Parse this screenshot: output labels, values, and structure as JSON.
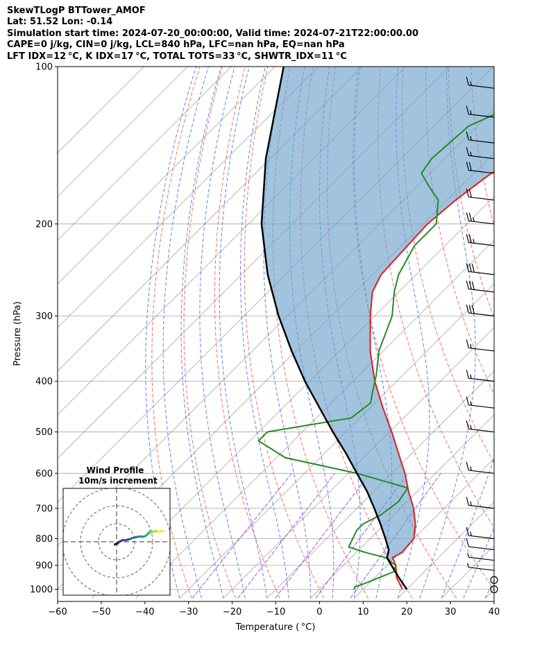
{
  "header": {
    "line1": "SkewTLogP BTTower_AMOF",
    "line2": "Lat: 51.52   Lon: -0.14",
    "line3": "Simulation start time: 2024-07-20_00:00:00, Valid time: 2024-07-21T22:00:00.00",
    "line4": "CAPE=0 j/kg, CIN=0 j/kg, LCL=840 hPa, LFC=nan hPa, EQ=nan hPa",
    "line5": "LFT IDX=12 °C, K IDX=17 °C, TOTAL TOTS=33 °C, SHWTR_IDX=11 °C"
  },
  "colors": {
    "temperature": "#e31a1c",
    "dewpoint": "#228b22",
    "parcel": "#000000",
    "cape_fill": "#6fa3cc",
    "dry_adiabats": "#ff4040",
    "moist_adiabats": "#3050ff",
    "mixing_ratio": "#8a2be2",
    "isotherms": "#808080"
  },
  "chart_data": [
    {
      "type": "line",
      "subtype": "skew-T log-P diagram",
      "xlabel": "Temperature ( °C)",
      "ylabel": "Pressure (hPa)",
      "xlim": [
        -60,
        40
      ],
      "ylim": [
        1040,
        100
      ],
      "y_scale": "log",
      "grid": true,
      "x_ticks": [
        "−60",
        "−50",
        "−40",
        "−30",
        "−20",
        "−10",
        "0",
        "10",
        "20",
        "30",
        "40"
      ],
      "y_ticks": [
        "100",
        "200",
        "300",
        "400",
        "500",
        "600",
        "700",
        "800",
        "900",
        "1000"
      ],
      "series": [
        {
          "key": "temperature",
          "p": [
            1000,
            950,
            900,
            870,
            850,
            800,
            750,
            700,
            650,
            600,
            550,
            500,
            450,
            400,
            350,
            300,
            270,
            250,
            200,
            180,
            160,
            150,
            140,
            130,
            120,
            110,
            100
          ],
          "t": [
            19.0,
            15.0,
            12.0,
            9.5,
            10.5,
            10.0,
            7.0,
            3.0,
            -2.0,
            -7.0,
            -13.0,
            -19.5,
            -27.0,
            -35.0,
            -43.0,
            -51.0,
            -56.0,
            -58.0,
            -59.0,
            -58.0,
            -56.0,
            -53.0,
            -50.0,
            -48.0,
            -47.5,
            -45.0,
            -44.0
          ]
        },
        {
          "key": "dewpoint",
          "p": [
            1000,
            990,
            975,
            950,
            925,
            900,
            870,
            850,
            830,
            800,
            770,
            750,
            720,
            680,
            640,
            600,
            560,
            520,
            500,
            470,
            440,
            420,
            390,
            350,
            300,
            270,
            250,
            220,
            200,
            180,
            170,
            160,
            150,
            130,
            120,
            100
          ],
          "t": [
            8.0,
            7.5,
            9.0,
            11.0,
            13.0,
            12.0,
            8.0,
            2.0,
            -3.0,
            -4.0,
            -5.0,
            -5.0,
            -3.0,
            -2.0,
            -3.0,
            -18.0,
            -38.0,
            -48.0,
            -48.0,
            -32.0,
            -31.0,
            -33.0,
            -36.0,
            -41.0,
            -46.0,
            -51.0,
            -54.0,
            -57.0,
            -57.0,
            -62.0,
            -67.0,
            -72.0,
            -73.0,
            -72.0,
            -67.0,
            -60.0
          ]
        },
        {
          "key": "parcel",
          "p": [
            1000,
            950,
            900,
            870,
            850,
            840,
            800,
            750,
            700,
            650,
            600,
            550,
            500,
            450,
            400,
            350,
            300,
            250,
            200,
            150,
            100
          ],
          "t": [
            20.0,
            15.5,
            11.0,
            8.2,
            7.3,
            6.8,
            3.5,
            -1.0,
            -6.0,
            -11.5,
            -18.0,
            -25.0,
            -33.0,
            -41.5,
            -51.0,
            -61.0,
            -72.0,
            -84.0,
            -97.0,
            -111.0,
            -128.0
          ]
        }
      ],
      "wind_barbs": {
        "p": [
          1000,
          960,
          920,
          880,
          840,
          800,
          700,
          600,
          500,
          450,
          400,
          350,
          300,
          270,
          250,
          220,
          200,
          180,
          160,
          150,
          140,
          125,
          110
        ],
        "speed_kt": [
          0,
          0,
          5,
          5,
          10,
          15,
          15,
          15,
          15,
          15,
          15,
          15,
          30,
          30,
          30,
          25,
          25,
          20,
          20,
          15,
          15,
          15,
          15
        ],
        "dir_deg": [
          0,
          0,
          250,
          260,
          270,
          275,
          280,
          285,
          290,
          290,
          290,
          290,
          290,
          290,
          290,
          290,
          290,
          290,
          290,
          290,
          290,
          290,
          290
        ]
      }
    },
    {
      "type": "line",
      "subtype": "hodograph",
      "title": "Wind Profile",
      "subtitle": "10m/s increment",
      "u": [
        -1.0,
        -0.5,
        0.5,
        1.5,
        2.5,
        3.5,
        4.5,
        5.5,
        6.5,
        7.5,
        8.5,
        10.5,
        13.0,
        14.5,
        15.5,
        16.5,
        17.5,
        18.0,
        18.5,
        19.0,
        20.0,
        21.0,
        22.0,
        23.0,
        24.5,
        26.0
      ],
      "v": [
        -1.5,
        -1.2,
        -1.0,
        0.0,
        0.5,
        1.0,
        0.8,
        1.0,
        1.3,
        1.5,
        2.0,
        2.5,
        3.0,
        2.8,
        3.0,
        3.5,
        4.5,
        5.5,
        5.0,
        6.0,
        5.5,
        5.8,
        6.0,
        5.5,
        5.8,
        6.0
      ]
    }
  ]
}
